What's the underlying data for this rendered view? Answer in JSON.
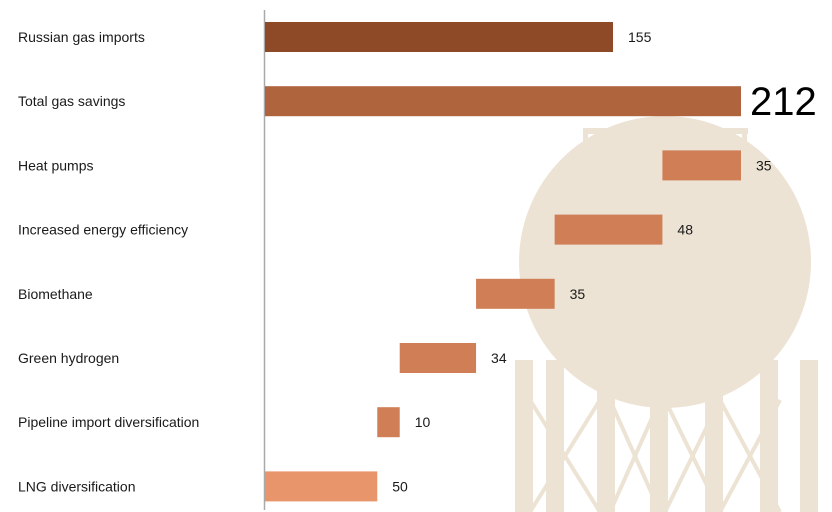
{
  "chart_data": {
    "type": "bar",
    "orientation": "horizontal",
    "style": "waterfall",
    "title": "",
    "xlabel": "",
    "ylabel": "",
    "xlim": [
      0,
      212
    ],
    "categories": [
      "Russian gas imports",
      "Total gas savings",
      "Heat pumps",
      "Increased energy efficiency",
      "Biomethane",
      "Green hydrogen",
      "Pipeline import diversification",
      "LNG diversification"
    ],
    "bars": [
      {
        "label": "Russian gas imports",
        "start": 0,
        "end": 155,
        "value": 155,
        "display": "155",
        "color": "#8e4a27"
      },
      {
        "label": "Total gas savings",
        "start": 0,
        "end": 212,
        "value": 212,
        "display": "212",
        "color": "#b0643e",
        "emphasis": true
      },
      {
        "label": "Heat pumps",
        "start": 177,
        "end": 212,
        "value": 35,
        "display": "35",
        "color": "#cf7e56"
      },
      {
        "label": "Increased energy efficiency",
        "start": 129,
        "end": 177,
        "value": 48,
        "display": "48",
        "color": "#cf7e56"
      },
      {
        "label": "Biomethane",
        "start": 94,
        "end": 129,
        "value": 35,
        "display": "35",
        "color": "#cf7e56"
      },
      {
        "label": "Green hydrogen",
        "start": 60,
        "end": 94,
        "value": 34,
        "display": "34",
        "color": "#cf7e56"
      },
      {
        "label": "Pipeline import diversification",
        "start": 50,
        "end": 60,
        "value": 10,
        "display": "10",
        "color": "#cf7e56"
      },
      {
        "label": "LNG diversification",
        "start": 0,
        "end": 50,
        "value": 50,
        "display": "50",
        "color": "#e8956c"
      }
    ],
    "grid": false,
    "legend": "none",
    "background_icon": "gas-storage-tank-illustration",
    "background_color": "#ede3d4"
  }
}
